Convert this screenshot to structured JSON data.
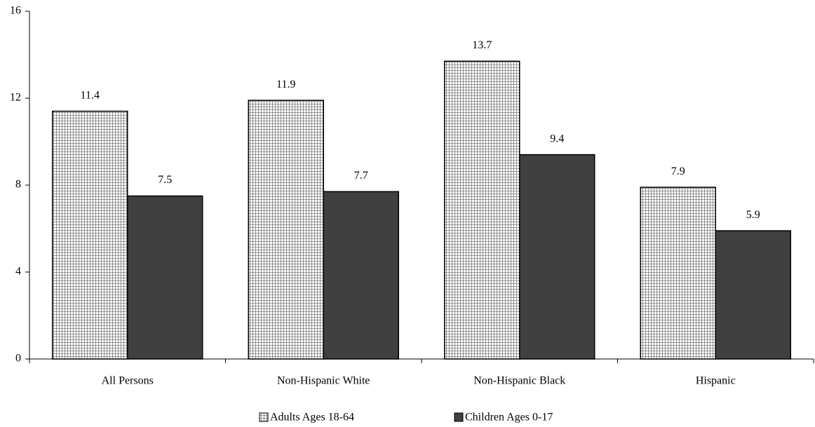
{
  "chart_data": {
    "type": "bar",
    "categories": [
      "All Persons",
      "Non-Hispanic White",
      "Non-Hispanic Black",
      "Hispanic"
    ],
    "series": [
      {
        "name": "Adults Ages 18-64",
        "color": "#ffffff",
        "values": [
          11.4,
          11.9,
          13.7,
          7.9
        ]
      },
      {
        "name": "Children Ages 0-17",
        "color": "#404040",
        "values": [
          7.5,
          7.7,
          9.4,
          5.9
        ]
      }
    ],
    "ylim": [
      0,
      16
    ],
    "yticks": [
      0,
      4,
      8,
      12,
      16
    ],
    "grid": false,
    "legend": "bottom"
  }
}
